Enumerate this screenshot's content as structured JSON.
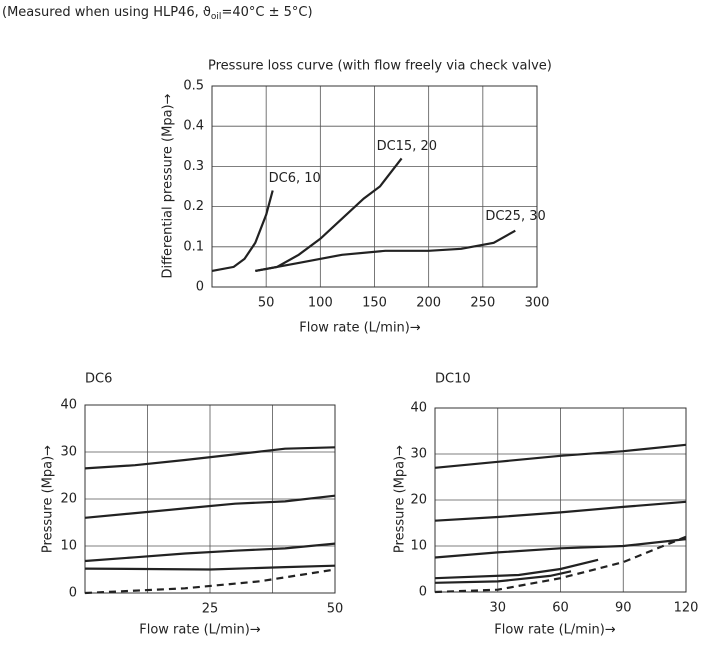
{
  "header": {
    "text": "(Measured when using HLP46, ϑ",
    "subscript": "oil",
    "tail": "=40°C ± 5°C)"
  },
  "chart_data": [
    {
      "type": "line",
      "title": "Pressure loss curve (with flow freely via check valve)",
      "x_label": "Flow rate (L/min)→",
      "y_label": "Differential pressure (Mpa)→",
      "xlim": [
        0,
        300
      ],
      "ylim": [
        0,
        0.5
      ],
      "xticks": [
        50,
        100,
        150,
        200,
        250,
        300
      ],
      "yticks": [
        0,
        0.1,
        0.2,
        0.3,
        0.4,
        0.5
      ],
      "xgrid": [
        50,
        100,
        150,
        200,
        250
      ],
      "grid": true,
      "series": [
        {
          "name": "DC6, 10",
          "color": "#222222",
          "x": [
            0,
            20,
            30,
            40,
            50,
            56
          ],
          "values": [
            0.04,
            0.05,
            0.07,
            0.11,
            0.18,
            0.24
          ]
        },
        {
          "name": "DC15, 20",
          "color": "#222222",
          "x": [
            40,
            60,
            80,
            100,
            120,
            140,
            155,
            175
          ],
          "values": [
            0.04,
            0.05,
            0.08,
            0.12,
            0.17,
            0.22,
            0.25,
            0.32
          ]
        },
        {
          "name": "DC25, 30",
          "color": "#222222",
          "x": [
            40,
            80,
            120,
            160,
            200,
            230,
            260,
            280
          ],
          "values": [
            0.04,
            0.06,
            0.08,
            0.09,
            0.09,
            0.095,
            0.11,
            0.14
          ]
        }
      ]
    },
    {
      "type": "line",
      "title": "DC6",
      "x_label": "Flow rate (L/min)→",
      "y_label": "Pressure (Mpa)→",
      "xlim": [
        0,
        50
      ],
      "ylim": [
        0,
        40
      ],
      "xticks": [
        25,
        50
      ],
      "yticks": [
        0,
        10,
        20,
        30,
        40
      ],
      "xgrid": [
        12.5,
        25,
        37.5
      ],
      "grid": true,
      "series": [
        {
          "color": "#222222",
          "x": [
            0,
            10,
            20,
            30,
            40,
            50
          ],
          "values": [
            26.5,
            27.2,
            28.3,
            29.5,
            30.7,
            31
          ]
        },
        {
          "color": "#222222",
          "x": [
            0,
            10,
            20,
            30,
            40,
            50
          ],
          "values": [
            16,
            17,
            18,
            19,
            19.5,
            20.7
          ]
        },
        {
          "color": "#222222",
          "x": [
            0,
            10,
            20,
            30,
            40,
            50
          ],
          "values": [
            6.8,
            7.6,
            8.4,
            9,
            9.5,
            10.5
          ]
        },
        {
          "color": "#222222",
          "x": [
            0,
            25,
            40,
            50
          ],
          "values": [
            5.2,
            5,
            5.5,
            5.8
          ]
        },
        {
          "color": "#222222",
          "dashed": true,
          "x": [
            0,
            20,
            35,
            50
          ],
          "values": [
            0,
            1,
            2.5,
            5
          ]
        }
      ]
    },
    {
      "type": "line",
      "title": "DC10",
      "x_label": "Flow rate (L/min)→",
      "y_label": "Pressure (Mpa)→",
      "xlim": [
        0,
        120
      ],
      "ylim": [
        0,
        40
      ],
      "xticks": [
        30,
        60,
        90,
        120
      ],
      "yticks": [
        0,
        10,
        20,
        30,
        40
      ],
      "xgrid": [
        30,
        60,
        90
      ],
      "grid": true,
      "series": [
        {
          "color": "#222222",
          "x": [
            0,
            30,
            60,
            90,
            120
          ],
          "values": [
            27,
            28.3,
            29.6,
            30.6,
            32
          ]
        },
        {
          "color": "#222222",
          "x": [
            0,
            30,
            60,
            90,
            120
          ],
          "values": [
            15.5,
            16.3,
            17.3,
            18.5,
            19.6
          ]
        },
        {
          "color": "#222222",
          "x": [
            0,
            30,
            60,
            90,
            120
          ],
          "values": [
            7.5,
            8.6,
            9.5,
            10,
            11.5
          ]
        },
        {
          "color": "#222222",
          "x": [
            0,
            40,
            60,
            78
          ],
          "values": [
            3,
            3.7,
            5,
            7
          ]
        },
        {
          "color": "#222222",
          "x": [
            0,
            30,
            55,
            65
          ],
          "values": [
            2,
            2.3,
            3.5,
            4.5
          ]
        },
        {
          "color": "#222222",
          "dashed": true,
          "x": [
            0,
            30,
            60,
            90,
            120
          ],
          "values": [
            0,
            0.5,
            3,
            6.5,
            12
          ]
        }
      ]
    }
  ]
}
